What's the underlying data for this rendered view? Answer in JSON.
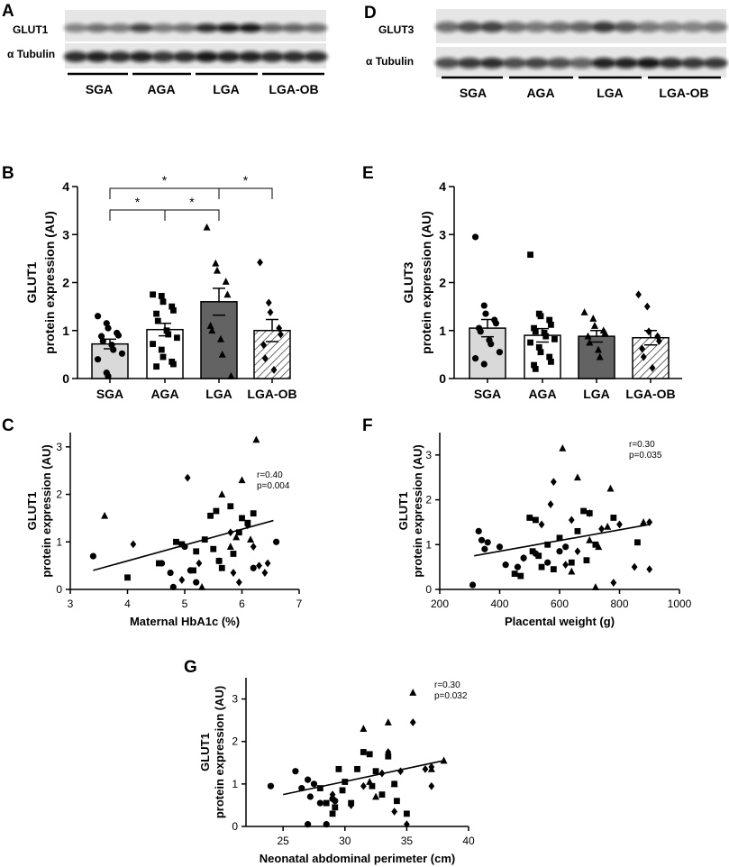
{
  "colors": {
    "sga": "#d9d9d9",
    "aga": "#ffffff",
    "lga": "#636363",
    "lgaob_hatch": "#444444"
  },
  "panel_labels": {
    "a": "A",
    "b": "B",
    "c": "C",
    "d": "D",
    "e": "E",
    "f": "F",
    "g": "G"
  },
  "blots": {
    "a": {
      "protein": "GLUT1",
      "loading": "α Tubulin",
      "groups": [
        "SGA",
        "AGA",
        "LGA",
        "LGA-OB"
      ]
    },
    "d": {
      "protein": "GLUT3",
      "loading": "α Tubulin",
      "groups": [
        "SGA",
        "AGA",
        "LGA",
        "LGA-OB"
      ]
    }
  },
  "chart_data": [
    {
      "id": "B",
      "type": "bar",
      "ylabel_line1": "GLUT1",
      "ylabel_line2": "protein expression (AU)",
      "categories": [
        "SGA",
        "AGA",
        "LGA",
        "LGA-OB"
      ],
      "values": [
        0.72,
        1.02,
        1.6,
        1.0
      ],
      "sem": [
        0.1,
        0.13,
        0.28,
        0.23
      ],
      "ylim": [
        0,
        4
      ],
      "yticks": [
        "0",
        "1",
        "2",
        "3",
        "4"
      ],
      "significance": [
        {
          "from": 0,
          "to": 2,
          "label": "*"
        },
        {
          "from": 0,
          "to": 1,
          "label": "*"
        },
        {
          "from": 1,
          "to": 2,
          "label": "*"
        },
        {
          "from": 2,
          "to": 3,
          "label": "*"
        }
      ],
      "points": [
        [
          1.3,
          1.15,
          1.05,
          0.95,
          0.9,
          0.88,
          0.78,
          0.7,
          0.6,
          0.52,
          0.4,
          0.12,
          0.05
        ],
        [
          1.75,
          1.72,
          1.6,
          1.5,
          1.42,
          1.35,
          1.2,
          1.0,
          0.92,
          0.85,
          0.72,
          0.6,
          0.45,
          0.35,
          0.3,
          0.25
        ],
        [
          3.15,
          2.4,
          2.25,
          2.02,
          1.75,
          1.1,
          1.0,
          0.82,
          0.5,
          0.05
        ],
        [
          2.42,
          1.58,
          1.38,
          1.05,
          0.92,
          0.7,
          0.42,
          0.18
        ]
      ]
    },
    {
      "id": "E",
      "type": "bar",
      "ylabel_line1": "GLUT3",
      "ylabel_line2": "protein expression (AU)",
      "categories": [
        "SGA",
        "AGA",
        "LGA",
        "LGA-OB"
      ],
      "values": [
        1.05,
        0.9,
        0.88,
        0.85
      ],
      "sem": [
        0.18,
        0.14,
        0.12,
        0.15
      ],
      "ylim": [
        0,
        4
      ],
      "yticks": [
        "0",
        "1",
        "2",
        "3",
        "4"
      ],
      "points": [
        [
          2.95,
          1.52,
          1.35,
          1.22,
          1.15,
          1.05,
          0.98,
          0.8,
          0.72,
          0.55,
          0.42,
          0.3
        ],
        [
          2.58,
          1.35,
          1.3,
          1.22,
          1.12,
          1.05,
          0.98,
          0.95,
          0.88,
          0.82,
          0.75,
          0.65,
          0.55,
          0.45,
          0.35,
          0.28,
          0.2
        ],
        [
          1.38,
          1.25,
          1.1,
          1.0,
          0.95,
          0.88,
          0.75,
          0.6,
          0.45
        ],
        [
          1.75,
          1.5,
          0.98,
          0.88,
          0.78,
          0.62,
          0.45,
          0.22
        ]
      ]
    },
    {
      "id": "C",
      "type": "scatter",
      "ylabel_line1": "GLUT1",
      "ylabel_line2": "protein expression (AU)",
      "xlabel": "Maternal HbA1c (%)",
      "xlim": [
        3,
        7
      ],
      "ylim": [
        0,
        3.3
      ],
      "xticks": [
        3,
        4,
        5,
        6,
        7
      ],
      "yticks": [
        0,
        1,
        2,
        3
      ],
      "stats": [
        "r=0.40",
        "p=0.004"
      ],
      "fit": {
        "x": [
          3.4,
          6.55
        ],
        "y": [
          0.4,
          1.45
        ]
      },
      "series": [
        {
          "name": "SGA",
          "marker": "circle",
          "x": [
            3.4,
            4.6,
            4.75,
            4.8,
            5.0,
            5.1,
            5.2,
            5.6,
            6.2,
            6.6
          ],
          "y": [
            0.7,
            0.55,
            0.35,
            0.05,
            0.9,
            0.4,
            0.15,
            0.6,
            0.45,
            1.0
          ]
        },
        {
          "name": "AGA",
          "marker": "square",
          "x": [
            4.0,
            4.55,
            4.85,
            4.95,
            5.15,
            5.2,
            5.35,
            5.45,
            5.5,
            5.55,
            5.6,
            5.65,
            5.8,
            5.85,
            5.95,
            6.0,
            6.1,
            6.2
          ],
          "y": [
            0.25,
            0.55,
            1.0,
            0.95,
            0.4,
            0.8,
            1.05,
            1.55,
            0.85,
            1.65,
            0.6,
            0.45,
            1.75,
            0.75,
            1.2,
            1.5,
            1.4,
            1.6
          ]
        },
        {
          "name": "LGA",
          "marker": "triangle",
          "x": [
            3.6,
            5.3,
            5.65,
            5.8,
            5.9,
            6.0,
            6.15,
            6.25
          ],
          "y": [
            1.55,
            0.05,
            2.0,
            0.9,
            1.1,
            2.3,
            1.05,
            3.15
          ]
        },
        {
          "name": "LGA-OB",
          "marker": "diamond",
          "x": [
            4.1,
            4.95,
            5.05,
            5.25,
            5.8,
            5.85,
            5.95,
            6.1,
            6.3,
            6.4,
            6.45,
            6.2
          ],
          "y": [
            0.95,
            0.2,
            2.35,
            0.55,
            1.2,
            0.35,
            0.15,
            1.35,
            0.5,
            0.35,
            0.55,
            0.9
          ]
        }
      ]
    },
    {
      "id": "F",
      "type": "scatter",
      "ylabel_line1": "GLUT1",
      "ylabel_line2": "protein expression (AU)",
      "xlabel": "Placental weight (g)",
      "xlim": [
        200,
        1000
      ],
      "ylim": [
        0,
        3.5
      ],
      "xticks": [
        200,
        400,
        600,
        800,
        1000
      ],
      "yticks": [
        0,
        1,
        2,
        3
      ],
      "stats": [
        "r=0.30",
        "p=0.035"
      ],
      "fit": {
        "x": [
          315,
          900
        ],
        "y": [
          0.75,
          1.45
        ]
      },
      "series": [
        {
          "name": "SGA",
          "marker": "circle",
          "x": [
            310,
            330,
            340,
            350,
            360,
            400,
            420,
            460,
            480,
            520,
            560,
            600,
            620
          ],
          "y": [
            0.1,
            1.3,
            1.1,
            0.9,
            1.05,
            0.95,
            0.55,
            0.5,
            0.7,
            0.8,
            0.6,
            0.85,
            0.95
          ]
        },
        {
          "name": "AGA",
          "marker": "square",
          "x": [
            450,
            470,
            500,
            510,
            520,
            530,
            540,
            560,
            580,
            600,
            640,
            660,
            680,
            690,
            700,
            720,
            780,
            860
          ],
          "y": [
            0.35,
            0.3,
            1.6,
            0.85,
            1.55,
            0.75,
            0.5,
            1.0,
            0.45,
            1.15,
            0.6,
            1.3,
            1.75,
            0.65,
            1.7,
            1.0,
            1.6,
            1.05
          ]
        },
        {
          "name": "LGA",
          "marker": "triangle",
          "x": [
            610,
            660,
            700,
            720,
            730,
            760,
            770,
            880,
            640
          ],
          "y": [
            3.15,
            2.5,
            1.1,
            0.05,
            0.95,
            1.4,
            2.25,
            1.5,
            0.4
          ]
        },
        {
          "name": "LGA-OB",
          "marker": "diamond",
          "x": [
            480,
            540,
            580,
            620,
            640,
            660,
            700,
            740,
            780,
            800,
            850,
            900,
            900,
            570
          ],
          "y": [
            0.7,
            1.45,
            2.4,
            0.55,
            1.55,
            0.85,
            1.7,
            1.35,
            0.15,
            1.45,
            0.5,
            1.5,
            0.45,
            1.9
          ]
        }
      ]
    },
    {
      "id": "G",
      "type": "scatter",
      "ylabel_line1": "GLUT1",
      "ylabel_line2": "protein expression (AU)",
      "xlabel": "Neonatal abdominal perimeter (cm)",
      "xlim": [
        22,
        40
      ],
      "ylim": [
        0,
        3.5
      ],
      "xticks": [
        25,
        30,
        35,
        40
      ],
      "yticks": [
        0,
        1,
        2,
        3
      ],
      "stats": [
        "r=0.30",
        "p=0.032"
      ],
      "fit": {
        "x": [
          25,
          38
        ],
        "y": [
          0.75,
          1.55
        ]
      },
      "series": [
        {
          "name": "SGA",
          "marker": "circle",
          "x": [
            24,
            26,
            26.5,
            27,
            27,
            27.2,
            27.5,
            28,
            28.5,
            29,
            29.2
          ],
          "y": [
            0.95,
            1.3,
            0.9,
            1.1,
            0.05,
            0.7,
            1.0,
            0.55,
            0.05,
            0.65,
            0.6
          ]
        },
        {
          "name": "AGA",
          "marker": "square",
          "x": [
            28,
            28.5,
            29,
            29.2,
            29.5,
            29.8,
            30,
            30.5,
            31,
            31.5,
            32,
            32.2,
            32.5,
            33,
            33.5,
            34,
            34.2,
            35
          ],
          "y": [
            0.9,
            0.55,
            0.3,
            0.45,
            1.35,
            0.85,
            1.05,
            0.55,
            1.35,
            1.75,
            1.7,
            0.95,
            1.3,
            0.75,
            1.65,
            1.0,
            0.6,
            0.3
          ]
        },
        {
          "name": "LGA",
          "marker": "triangle",
          "x": [
            31.5,
            32,
            32.5,
            33.5,
            34,
            35.5,
            37,
            38
          ],
          "y": [
            2.3,
            1.05,
            0.7,
            2.45,
            1.0,
            3.15,
            1.35,
            1.55
          ]
        },
        {
          "name": "LGA-OB",
          "marker": "diamond",
          "x": [
            29,
            30.5,
            31.5,
            33,
            33.5,
            34,
            34.5,
            35.5,
            36.5,
            37,
            37,
            35
          ],
          "y": [
            0.75,
            0.5,
            0.95,
            1.25,
            1.75,
            0.35,
            1.3,
            2.45,
            1.35,
            0.95,
            1.4,
            0.05
          ]
        }
      ]
    }
  ]
}
